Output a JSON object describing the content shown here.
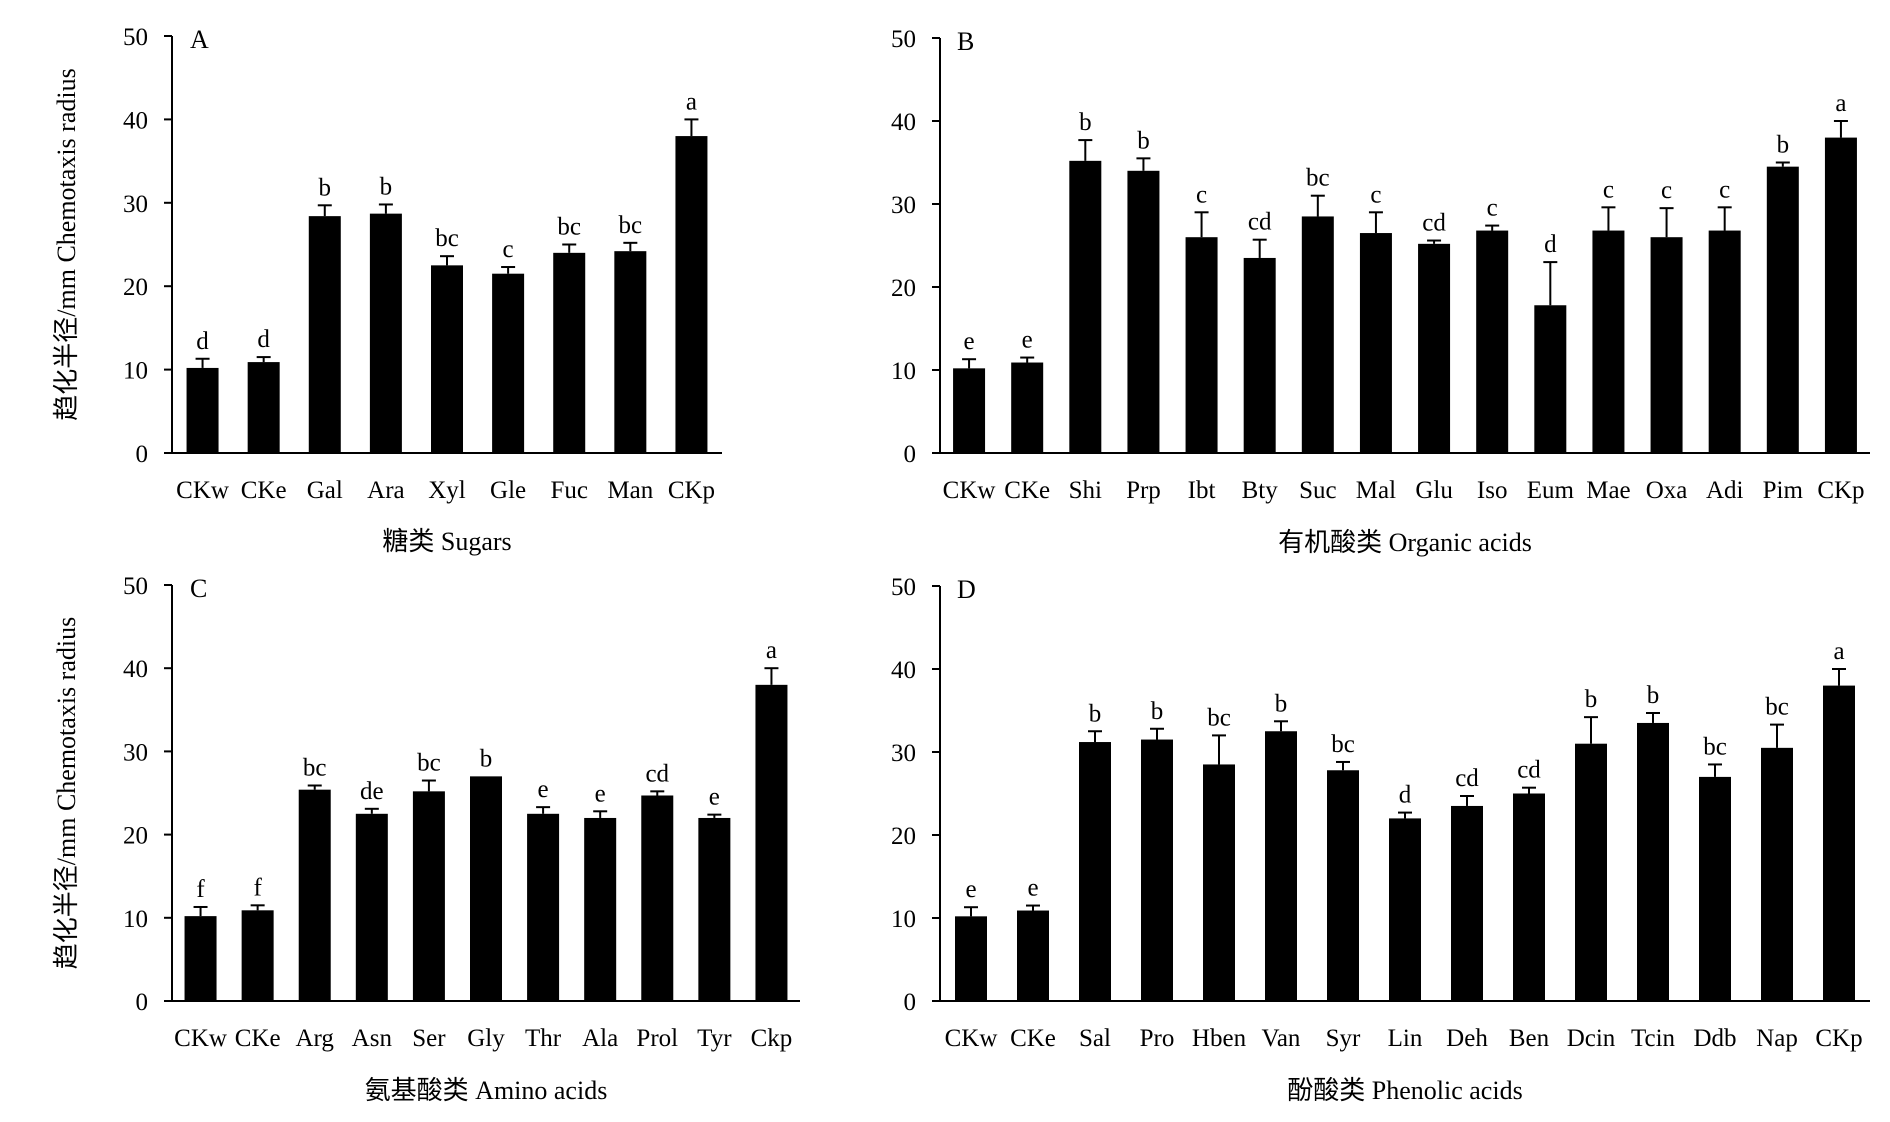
{
  "figure": {
    "ylabel": "趋化半径/mm  Chemotaxis radius"
  },
  "chart_data": [
    {
      "type": "bar",
      "panel": "A",
      "xlabel": "糖类 Sugars",
      "ylabel": "趋化半径/mm  Chemotaxis radius",
      "ylim": [
        0,
        50
      ],
      "yticks": [
        0,
        10,
        20,
        30,
        40,
        50
      ],
      "categories": [
        "CKw",
        "CKe",
        "Gal",
        "Ara",
        "Xyl",
        "Gle",
        "Fuc",
        "Man",
        "CKp"
      ],
      "values": [
        10.2,
        10.9,
        28.4,
        28.7,
        22.5,
        21.5,
        24.0,
        24.2,
        38.0
      ],
      "errors": [
        1.1,
        0.6,
        1.3,
        1.1,
        1.1,
        0.8,
        1.0,
        1.0,
        2.0
      ],
      "significance": [
        "d",
        "d",
        "b",
        "b",
        "bc",
        "c",
        "bc",
        "bc",
        "a"
      ],
      "bar_color": "#000000"
    },
    {
      "type": "bar",
      "panel": "B",
      "xlabel": "有机酸类 Organic acids",
      "ylabel": "",
      "ylim": [
        0,
        50
      ],
      "yticks": [
        0,
        10,
        20,
        30,
        40,
        50
      ],
      "categories": [
        "CKw",
        "CKe",
        "Shi",
        "Prp",
        "Ibt",
        "Bty",
        "Suc",
        "Mal",
        "Glu",
        "Iso",
        "Eum",
        "Mae",
        "Oxa",
        "Adi",
        "Pim",
        "CKp"
      ],
      "values": [
        10.2,
        10.9,
        35.2,
        34.0,
        26.0,
        23.5,
        28.5,
        26.5,
        25.2,
        26.8,
        17.8,
        26.8,
        26.0,
        26.8,
        34.5,
        38.0
      ],
      "errors": [
        1.1,
        0.6,
        2.5,
        1.5,
        3.0,
        2.2,
        2.5,
        2.5,
        0.4,
        0.6,
        5.2,
        2.8,
        3.5,
        2.8,
        0.5,
        2.0
      ],
      "significance": [
        "e",
        "e",
        "b",
        "b",
        "c",
        "cd",
        "bc",
        "c",
        "cd",
        "c",
        "d",
        "c",
        "c",
        "c",
        "b",
        "a"
      ],
      "bar_color": "#000000"
    },
    {
      "type": "bar",
      "panel": "C",
      "xlabel": "氨基酸类 Amino acids",
      "ylabel": "趋化半径/mm  Chemotaxis radius",
      "ylim": [
        0,
        50
      ],
      "yticks": [
        0,
        10,
        20,
        30,
        40,
        50
      ],
      "categories": [
        "CKw",
        "CKe",
        "Arg",
        "Asn",
        "Ser",
        "Gly",
        "Thr",
        "Ala",
        "Prol",
        "Tyr",
        "Ckp"
      ],
      "values": [
        10.2,
        10.9,
        25.4,
        22.5,
        25.2,
        27.0,
        22.5,
        22.0,
        24.7,
        22.0,
        38.0
      ],
      "errors": [
        1.1,
        0.6,
        0.5,
        0.6,
        1.3,
        0.0,
        0.8,
        0.8,
        0.5,
        0.4,
        2.0
      ],
      "significance": [
        "f",
        "f",
        "bc",
        "de",
        "bc",
        "b",
        "e",
        "e",
        "cd",
        "e",
        "a"
      ],
      "bar_color": "#000000"
    },
    {
      "type": "bar",
      "panel": "D",
      "xlabel": "酚酸类 Phenolic acids",
      "ylabel": "",
      "ylim": [
        0,
        50
      ],
      "yticks": [
        0,
        10,
        20,
        30,
        40,
        50
      ],
      "categories": [
        "CKw",
        "CKe",
        "Sal",
        "Pro",
        "Hben",
        "Van",
        "Syr",
        "Lin",
        "Deh",
        "Ben",
        "Dcin",
        "Tcin",
        "Ddb",
        "Nap",
        "CKp"
      ],
      "values": [
        10.2,
        10.9,
        31.2,
        31.5,
        28.5,
        32.5,
        27.8,
        22.0,
        23.5,
        25.0,
        31.0,
        33.5,
        27.0,
        30.5,
        38.0
      ],
      "errors": [
        1.1,
        0.6,
        1.3,
        1.3,
        3.5,
        1.2,
        1.0,
        0.7,
        1.2,
        0.7,
        3.2,
        1.2,
        1.5,
        2.8,
        2.0
      ],
      "significance": [
        "e",
        "e",
        "b",
        "b",
        "bc",
        "b",
        "bc",
        "d",
        "cd",
        "cd",
        "b",
        "b",
        "bc",
        "bc",
        "a"
      ],
      "bar_color": "#000000"
    }
  ]
}
